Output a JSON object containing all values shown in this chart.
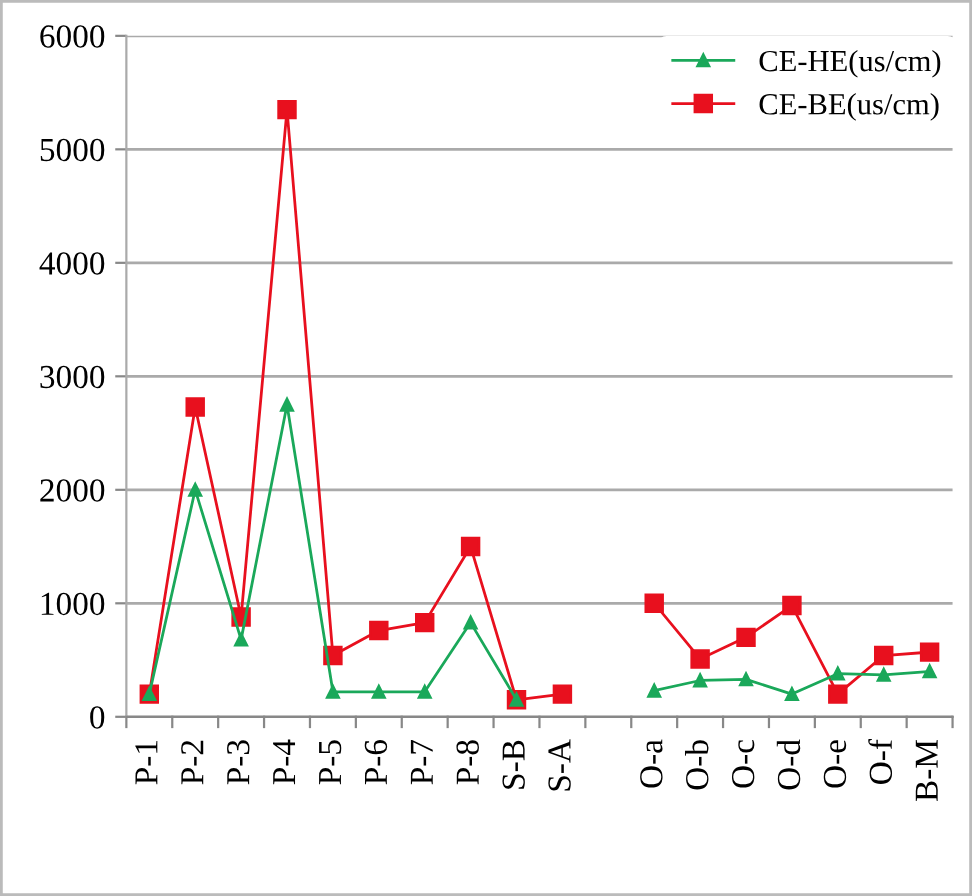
{
  "chart_data": {
    "type": "line",
    "categories": [
      "P-1",
      "P-2",
      "P-3",
      "P-4",
      "P-5",
      "P-6",
      "P-7",
      "P-8",
      "S-B",
      "S-A",
      null,
      "O-a",
      "O-b",
      "O-c",
      "O-d",
      "O-e",
      "O-f",
      "B-M"
    ],
    "series": [
      {
        "name": "CE-HE(us/cm)",
        "color": "#1aa85a",
        "marker": "triangle",
        "values": [
          200,
          2000,
          680,
          2750,
          220,
          220,
          220,
          830,
          150,
          null,
          null,
          230,
          320,
          330,
          200,
          380,
          370,
          400
        ]
      },
      {
        "name": "CE-BE(us/cm)",
        "color": "#e8101e",
        "marker": "square",
        "values": [
          200,
          2730,
          880,
          5350,
          540,
          760,
          830,
          1500,
          150,
          200,
          null,
          1000,
          510,
          700,
          980,
          200,
          540,
          570
        ]
      }
    ],
    "ylim": [
      0,
      6000
    ],
    "yticks": [
      0,
      1000,
      2000,
      3000,
      4000,
      5000,
      6000
    ],
    "grid": "y",
    "legend": "top right",
    "line_style": "solid"
  }
}
